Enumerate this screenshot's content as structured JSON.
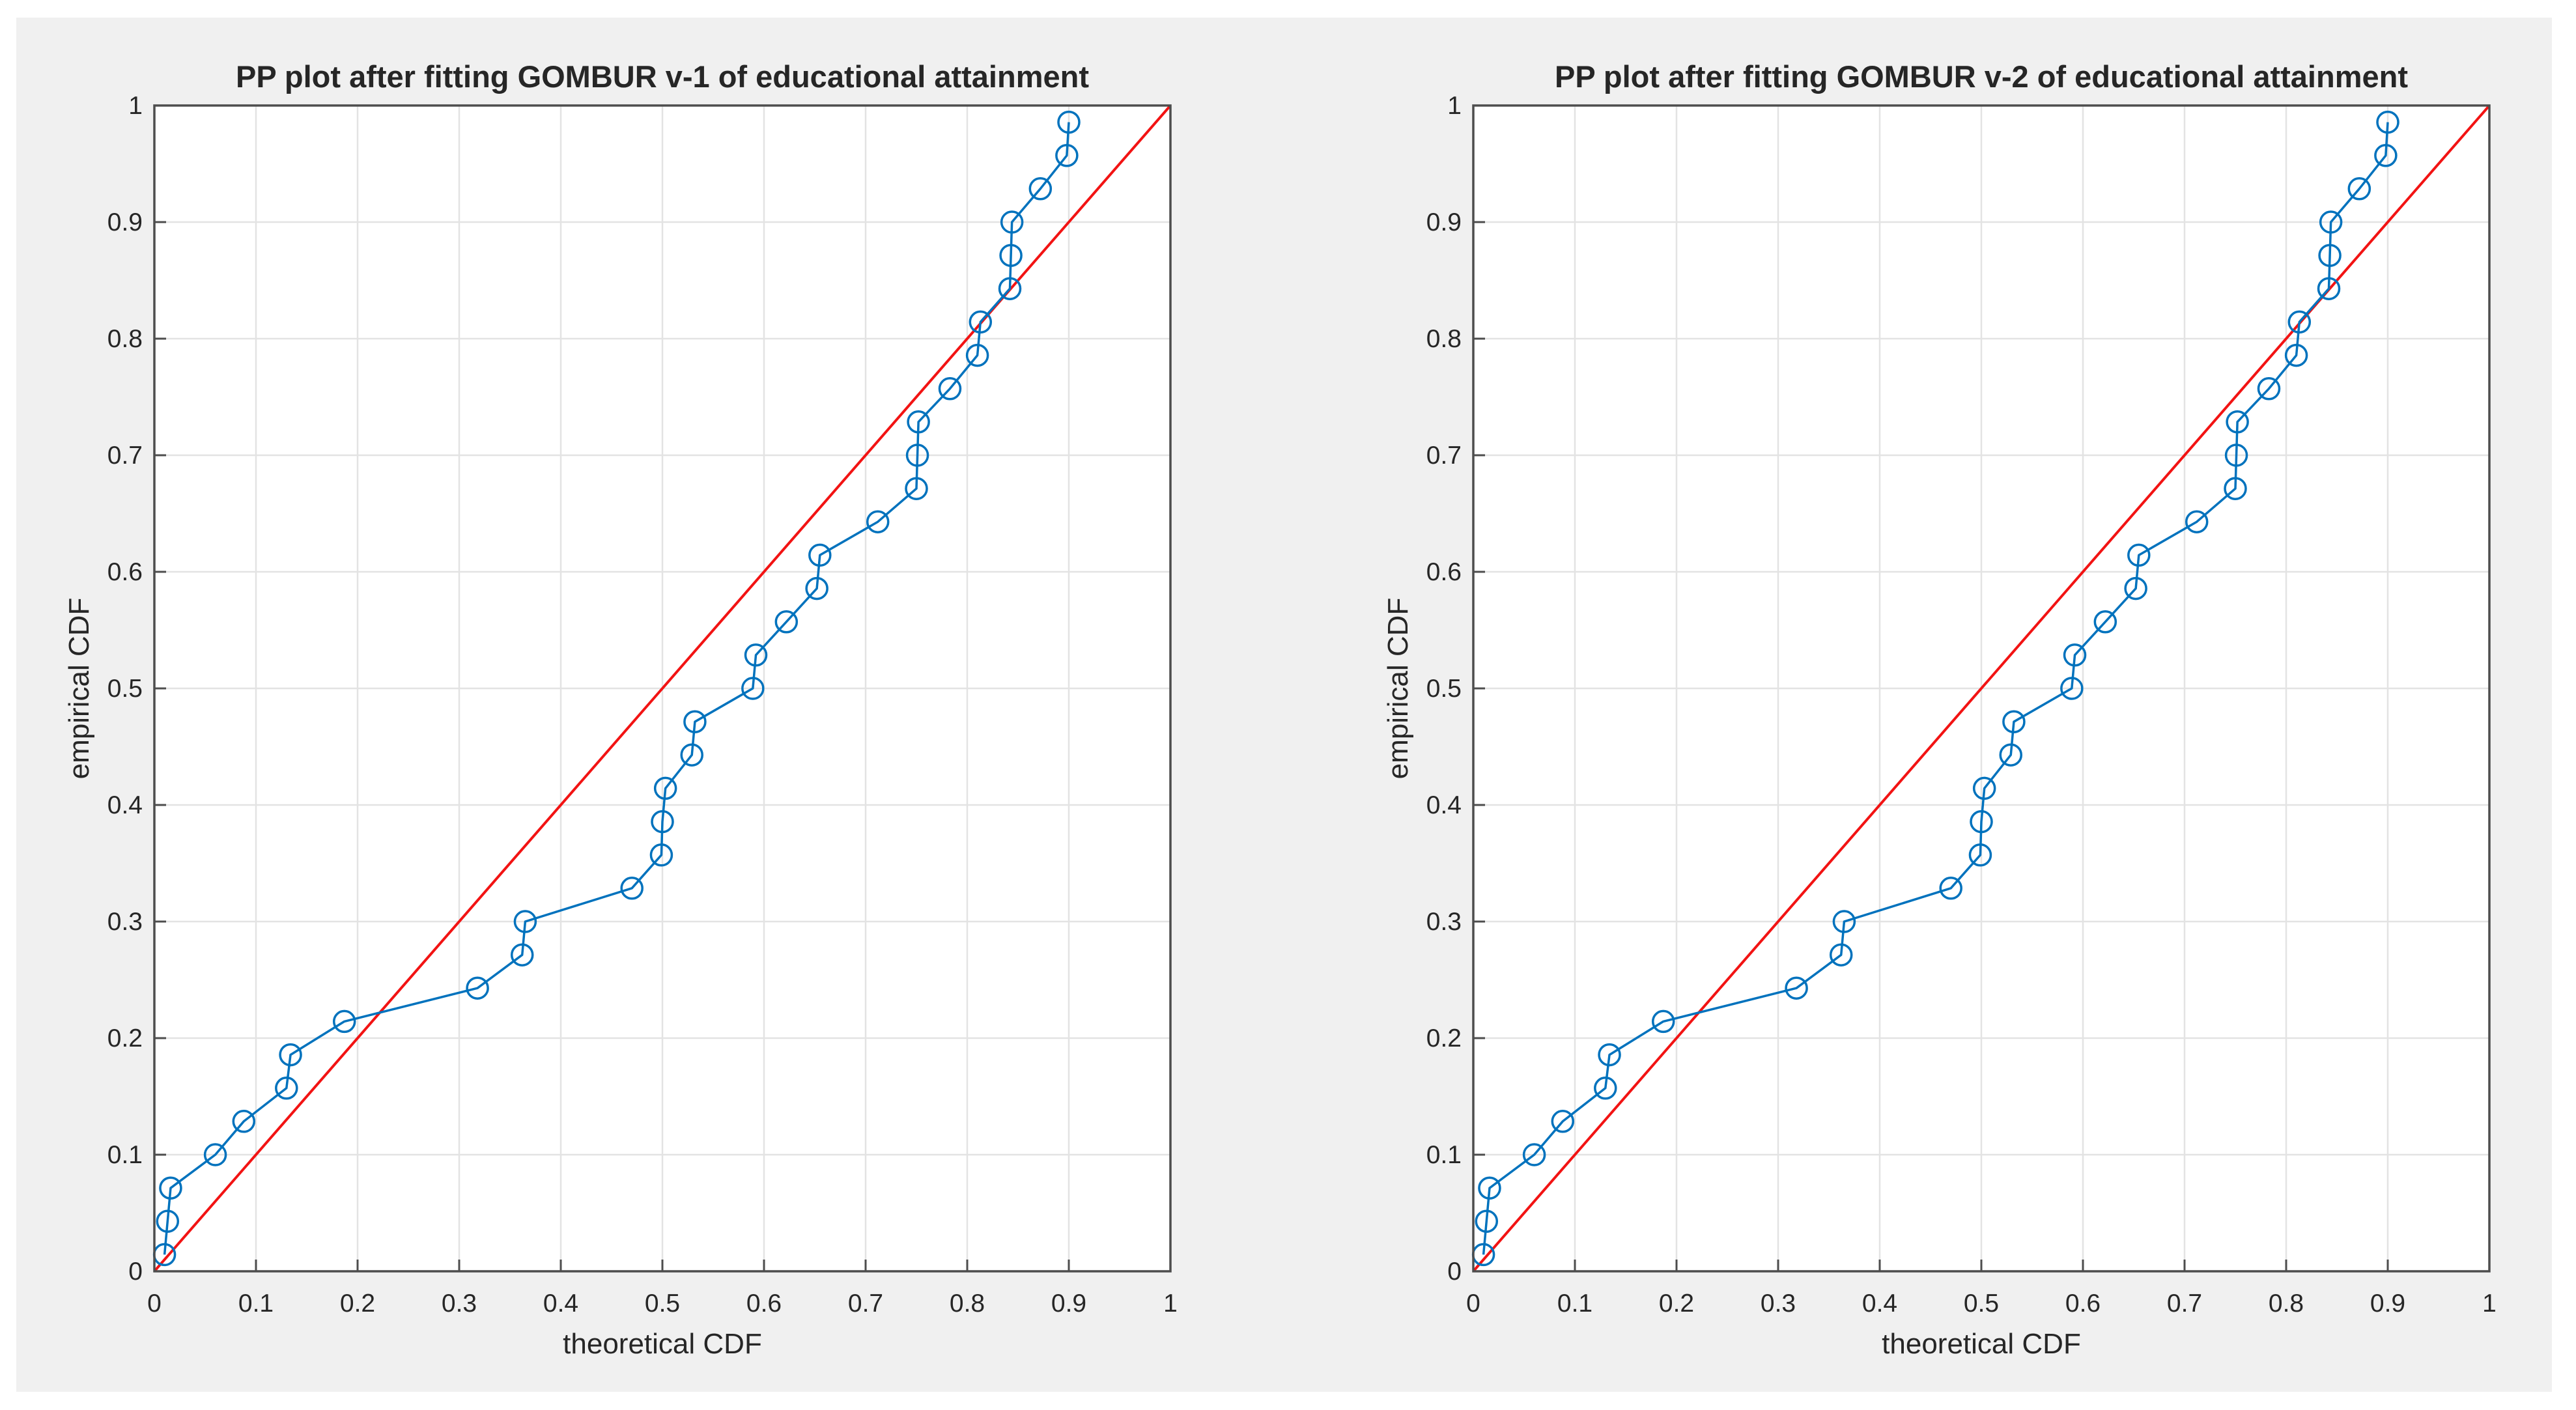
{
  "window": {
    "background": "#ffffff",
    "figure_background": "#f0f0f0",
    "plot_background": "#ffffff"
  },
  "colors": {
    "series_blue": "#0072BD",
    "reference_red": "#f21313",
    "grid": "#e3e3e3",
    "axis": "#4d4d4d",
    "text": "#262626"
  },
  "chart_data": [
    {
      "type": "line",
      "title": "PP plot after fitting GOMBUR v-1 of educational attainment",
      "xlabel": "theoretical CDF",
      "ylabel": "empirical CDF",
      "xlim": [
        0,
        1
      ],
      "ylim": [
        0,
        1
      ],
      "xticks": [
        0,
        0.1,
        0.2,
        0.3,
        0.4,
        0.5,
        0.6,
        0.7,
        0.8,
        0.9,
        1
      ],
      "yticks": [
        0,
        0.1,
        0.2,
        0.3,
        0.4,
        0.5,
        0.6,
        0.7,
        0.8,
        0.9,
        1
      ],
      "grid": true,
      "legend_position": "none",
      "series": [
        {
          "name": "empirical-vs-theoretical-points",
          "style": "line+circle-markers",
          "color": "#0072BD",
          "x": [
            0.01,
            0.013,
            0.016,
            0.06,
            0.088,
            0.13,
            0.134,
            0.187,
            0.318,
            0.362,
            0.365,
            0.47,
            0.499,
            0.5,
            0.503,
            0.529,
            0.532,
            0.589,
            0.592,
            0.622,
            0.652,
            0.655,
            0.712,
            0.75,
            0.751,
            0.752,
            0.783,
            0.81,
            0.813,
            0.842,
            0.843,
            0.844,
            0.872,
            0.898,
            0.9
          ],
          "y": [
            0.0143,
            0.0429,
            0.0714,
            0.1,
            0.1286,
            0.1571,
            0.1857,
            0.2143,
            0.2429,
            0.2714,
            0.3,
            0.3286,
            0.3571,
            0.3857,
            0.4143,
            0.4429,
            0.4714,
            0.5,
            0.5286,
            0.5571,
            0.5857,
            0.6143,
            0.6429,
            0.6714,
            0.7,
            0.7286,
            0.7571,
            0.7857,
            0.8143,
            0.8429,
            0.8714,
            0.9,
            0.9286,
            0.9571,
            0.9857
          ]
        },
        {
          "name": "reference-diagonal",
          "style": "line",
          "color": "#f21313",
          "x": [
            0,
            1
          ],
          "y": [
            0,
            1
          ]
        }
      ]
    },
    {
      "type": "line",
      "title": "PP plot after fitting GOMBUR v-2 of educational attainment",
      "xlabel": "theoretical CDF",
      "ylabel": "empirical CDF",
      "xlim": [
        0,
        1
      ],
      "ylim": [
        0,
        1
      ],
      "xticks": [
        0,
        0.1,
        0.2,
        0.3,
        0.4,
        0.5,
        0.6,
        0.7,
        0.8,
        0.9,
        1
      ],
      "yticks": [
        0,
        0.1,
        0.2,
        0.3,
        0.4,
        0.5,
        0.6,
        0.7,
        0.8,
        0.9,
        1
      ],
      "grid": true,
      "legend_position": "none",
      "series": [
        {
          "name": "empirical-vs-theoretical-points",
          "style": "line+circle-markers",
          "color": "#0072BD",
          "x": [
            0.01,
            0.013,
            0.016,
            0.06,
            0.088,
            0.13,
            0.134,
            0.187,
            0.318,
            0.362,
            0.365,
            0.47,
            0.499,
            0.5,
            0.503,
            0.529,
            0.532,
            0.589,
            0.592,
            0.622,
            0.652,
            0.655,
            0.712,
            0.75,
            0.751,
            0.752,
            0.783,
            0.81,
            0.813,
            0.842,
            0.843,
            0.844,
            0.872,
            0.898,
            0.9
          ],
          "y": [
            0.0143,
            0.0429,
            0.0714,
            0.1,
            0.1286,
            0.1571,
            0.1857,
            0.2143,
            0.2429,
            0.2714,
            0.3,
            0.3286,
            0.3571,
            0.3857,
            0.4143,
            0.4429,
            0.4714,
            0.5,
            0.5286,
            0.5571,
            0.5857,
            0.6143,
            0.6429,
            0.6714,
            0.7,
            0.7286,
            0.7571,
            0.7857,
            0.8143,
            0.8429,
            0.8714,
            0.9,
            0.9286,
            0.9571,
            0.9857
          ]
        },
        {
          "name": "reference-diagonal",
          "style": "line",
          "color": "#f21313",
          "x": [
            0,
            1
          ],
          "y": [
            0,
            1
          ]
        }
      ]
    }
  ]
}
